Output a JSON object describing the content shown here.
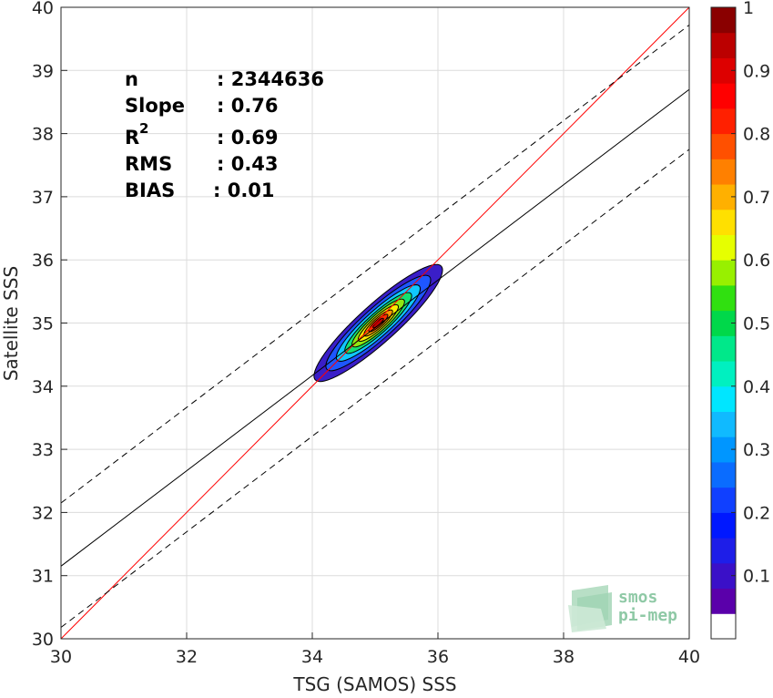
{
  "chart_data": {
    "type": "heatmap",
    "xlabel": "TSG (SAMOS) SSS",
    "ylabel": "Satellite SSS",
    "xlim": [
      30,
      40
    ],
    "ylim": [
      30,
      40
    ],
    "x_ticks": [
      "30",
      "32",
      "34",
      "36",
      "38",
      "40"
    ],
    "y_ticks": [
      "30",
      "31",
      "32",
      "33",
      "34",
      "35",
      "36",
      "37",
      "38",
      "39",
      "40"
    ],
    "grid": true,
    "stats": [
      {
        "label": "n",
        "value": ": 2344636"
      },
      {
        "label": "Slope",
        "value": ": 0.76"
      },
      {
        "label": "R",
        "sup": "2",
        "value": ": 0.69"
      },
      {
        "label": "RMS",
        "value": ": 0.43"
      },
      {
        "label": "BIAS",
        "value": ": 0.01"
      }
    ],
    "density_peak": {
      "x": 35.05,
      "y": 35.0
    },
    "density_contours": [
      {
        "level": 0.05,
        "color": "#3a1ec8",
        "a": 1.35,
        "b": 0.3
      },
      {
        "level": 0.15,
        "color": "#1e56ff",
        "a": 1.1,
        "b": 0.245
      },
      {
        "level": 0.3,
        "color": "#10c8ff",
        "a": 0.88,
        "b": 0.2
      },
      {
        "level": 0.45,
        "color": "#15e070",
        "a": 0.7,
        "b": 0.16
      },
      {
        "level": 0.55,
        "color": "#8fe812",
        "a": 0.55,
        "b": 0.13
      },
      {
        "level": 0.65,
        "color": "#ffee00",
        "a": 0.42,
        "b": 0.1
      },
      {
        "level": 0.75,
        "color": "#ff9a00",
        "a": 0.3,
        "b": 0.075
      },
      {
        "level": 0.85,
        "color": "#ff3000",
        "a": 0.2,
        "b": 0.052
      },
      {
        "level": 0.95,
        "color": "#c00000",
        "a": 0.11,
        "b": 0.03
      }
    ],
    "lines": [
      {
        "name": "identity",
        "color": "#ff0000",
        "dash": false,
        "x": [
          30,
          40
        ],
        "y": [
          30,
          40
        ]
      },
      {
        "name": "regression",
        "color": "#000000",
        "dash": false,
        "x": [
          30,
          40
        ],
        "y": [
          31.15,
          38.7
        ]
      },
      {
        "name": "upper",
        "color": "#000000",
        "dash": true,
        "x": [
          30,
          40
        ],
        "y": [
          32.15,
          39.72
        ]
      },
      {
        "name": "lower",
        "color": "#000000",
        "dash": true,
        "x": [
          30,
          40
        ],
        "y": [
          30.18,
          37.75
        ]
      }
    ],
    "colorbar": {
      "min": 0,
      "max": 1,
      "ticks": [
        "0.1",
        "0.2",
        "0.3",
        "0.4",
        "0.5",
        "0.6",
        "0.7",
        "0.8",
        "0.9",
        "1"
      ],
      "colors": [
        "#ffffff",
        "#5a00aa",
        "#3a10c8",
        "#1e1ee8",
        "#0018ff",
        "#1040ff",
        "#0a6cff",
        "#0096ff",
        "#10baff",
        "#00e6ff",
        "#00f0c0",
        "#00e88a",
        "#00d84a",
        "#30e010",
        "#98f000",
        "#e6ff00",
        "#ffe000",
        "#ffb000",
        "#ff8000",
        "#ff5000",
        "#ff2000",
        "#ff0000",
        "#dd0000",
        "#bb0000",
        "#8a0000"
      ]
    }
  },
  "logo": {
    "line1": "smos",
    "line2": "pi-mep"
  }
}
